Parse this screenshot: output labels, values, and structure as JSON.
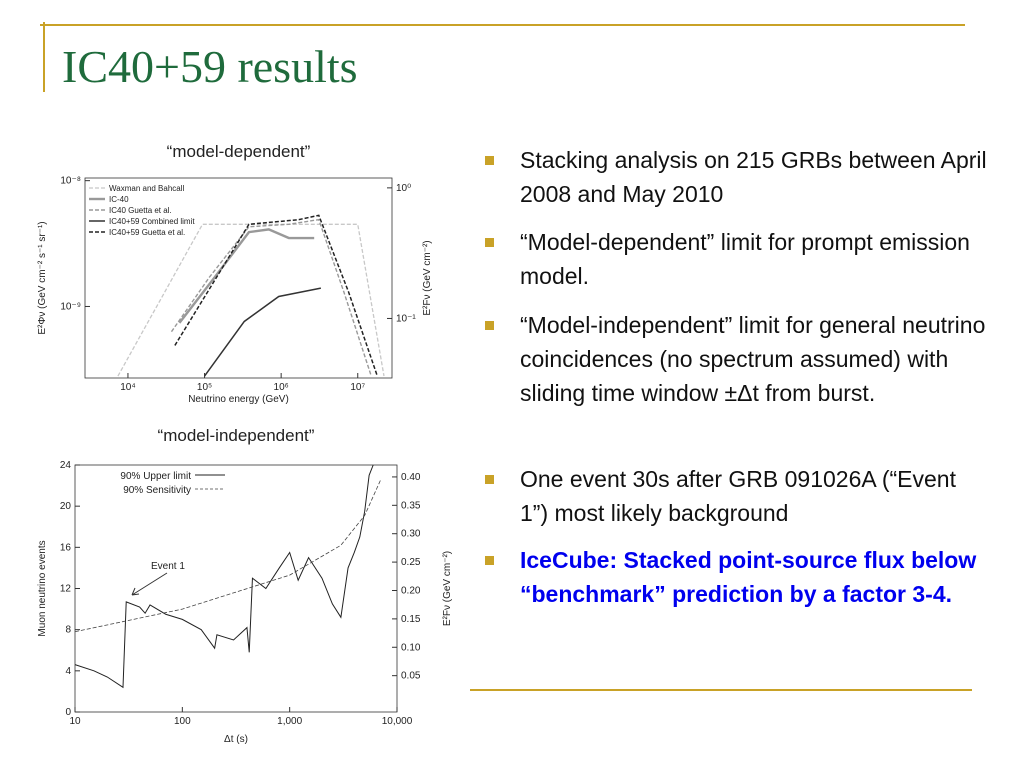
{
  "slide": {
    "title": "IC40+59 results",
    "bullets": [
      "Stacking analysis on 215 GRBs between April 2008 and May 2010",
      "“Model-dependent” limit for prompt emission model.",
      "“Model-independent” limit for general neutrino coincidences (no spectrum assumed) with sliding time window ±Δt from burst.",
      "One event 30s after GRB 091026A (“Event 1”) most likely background",
      "IceCube: Stacked point-source flux below  “benchmark” prediction by a factor 3-4."
    ]
  },
  "chart_data": [
    {
      "type": "line",
      "title": "“model-dependent”",
      "x_label": "Neutrino energy (GeV)",
      "y_label": "E²Φν (GeV cm⁻² s⁻¹ sr⁻¹)",
      "y2_label": "E²Fν (GeV cm⁻²)",
      "xscale": "log",
      "yscale": "log",
      "y2scale": "log",
      "legend": "upper left",
      "xlim": [
        2750,
        28000000
      ],
      "xticks": [
        {
          "value": 10000,
          "label": "10⁴"
        },
        {
          "value": 100000,
          "label": "10⁵"
        },
        {
          "value": 1000000,
          "label": "10⁶"
        },
        {
          "value": 10000000,
          "label": "10⁷"
        }
      ],
      "ylim": [
        2.7e-10,
        1.05e-08
      ],
      "yticks": [
        {
          "value": 1e-08,
          "label": "10⁻⁸"
        },
        {
          "value": 1e-09,
          "label": "10⁻⁹"
        }
      ],
      "y2lim": [
        0.035,
        1.19
      ],
      "y2ticks": [
        {
          "value": 1,
          "label": "10⁰"
        },
        {
          "value": 0.1,
          "label": "10⁻¹"
        }
      ],
      "series": [
        {
          "name": "Waxman and Bahcall",
          "color": "#c8c8c8",
          "dashed": true,
          "width": 1.3,
          "x": [
            7400,
            94000,
            10000000,
            22000000
          ],
          "values": [
            2.8e-10,
            4.5e-09,
            4.5e-09,
            2.8e-10
          ]
        },
        {
          "name": "IC-40",
          "color": "#999999",
          "dashed": false,
          "width": 2.4,
          "x": [
            47000,
            135000,
            380000,
            690000,
            1260000,
            2700000
          ],
          "values": [
            7.4e-10,
            1.7e-09,
            3.9e-09,
            4.1e-09,
            3.5e-09,
            3.5e-09
          ]
        },
        {
          "name": "IC40 Guetta et al.",
          "color": "#999999",
          "dashed": true,
          "width": 1.4,
          "x": [
            37000,
            115000,
            380000,
            1260000,
            3100000,
            6600000,
            15000000
          ],
          "values": [
            6.3e-10,
            1.7e-09,
            4.3e-09,
            4.5e-09,
            4.9e-09,
            1.3e-09,
            2.8e-10
          ]
        },
        {
          "name": "IC40+59 Combined limit",
          "color": "#333333",
          "dashed": false,
          "width": 1.5,
          "x": [
            100000,
            330000,
            930000,
            3300000
          ],
          "values": [
            2.8e-10,
            7.6e-10,
            1.2e-09,
            1.4e-09
          ]
        },
        {
          "name": "IC40+59 Guetta et al.",
          "color": "#222222",
          "dashed": true,
          "width": 1.5,
          "x": [
            41000,
            380000,
            1700000,
            3100000,
            7600000,
            18000000
          ],
          "values": [
            4.9e-10,
            4.5e-09,
            4.9e-09,
            5.3e-09,
            1.3e-09,
            2.8e-10
          ]
        }
      ]
    },
    {
      "type": "line",
      "title": "“model-independent”",
      "x_label": "Δt (s)",
      "y_label": "Muon neutrino events",
      "y2_label": "E²Fν (GeV cm⁻²)",
      "xscale": "log",
      "legend": "upper left",
      "annotations": [
        "Event 1"
      ],
      "xlim": [
        10,
        10000
      ],
      "xticks": [
        10,
        100,
        {
          "value": 1000,
          "label": "1,000"
        },
        {
          "value": 10000,
          "label": "10,000"
        }
      ],
      "ylim": [
        0,
        24
      ],
      "yticks": [
        0,
        4,
        8,
        12,
        16,
        20,
        24
      ],
      "y2lim": [
        -0.014,
        0.421
      ],
      "y2ticks": [
        0.05,
        {
          "value": 0.1,
          "label": "0.10"
        },
        0.15,
        {
          "value": 0.2,
          "label": "0.20"
        },
        0.25,
        {
          "value": 0.3,
          "label": "0.30"
        },
        0.35,
        {
          "value": 0.4,
          "label": "0.40"
        }
      ],
      "series": [
        {
          "name": "90% Upper limit",
          "color": "#222222",
          "dashed": false,
          "width": 1,
          "x": [
            10,
            15,
            20,
            28,
            30,
            40,
            45,
            50,
            70,
            100,
            150,
            200,
            210,
            300,
            400,
            420,
            450,
            600,
            800,
            1000,
            1200,
            1500,
            2000,
            2500,
            3000,
            3500,
            4000,
            4500,
            5000,
            5500,
            6000
          ],
          "values": [
            4.6,
            4,
            3.4,
            2.4,
            10.7,
            10.2,
            9.6,
            10.4,
            9.5,
            9,
            8,
            6.2,
            7.5,
            7,
            8.2,
            5.8,
            13,
            12,
            14,
            15.5,
            12.8,
            15,
            13,
            10.5,
            9.2,
            14,
            15.5,
            17,
            19.5,
            23,
            24
          ]
        },
        {
          "name": "90% Sensitivity",
          "color": "#444444",
          "dashed": true,
          "width": 0.8,
          "x": [
            10,
            100,
            1000,
            3000,
            5000,
            7000
          ],
          "values": [
            7.8,
            10,
            13.3,
            16.2,
            19.1,
            22.5
          ]
        }
      ]
    }
  ]
}
